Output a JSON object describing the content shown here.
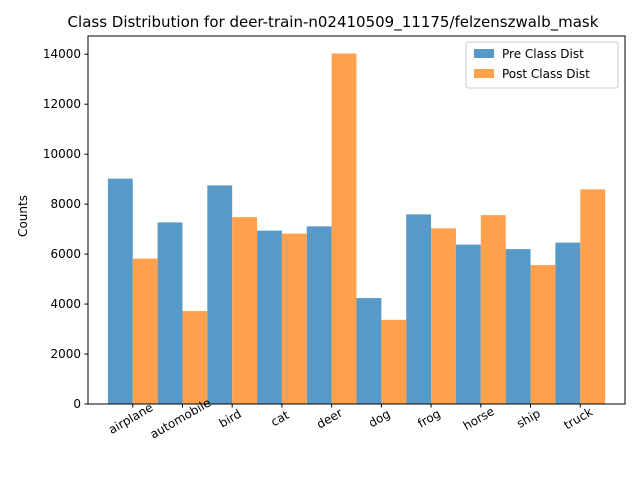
{
  "chart_data": {
    "type": "bar",
    "title": "Class Distribution for deer-train-n02410509_11175/felzenszwalb_mask",
    "xlabel": "",
    "ylabel": "Counts",
    "categories": [
      "airplane",
      "automobile",
      "bird",
      "cat",
      "deer",
      "dog",
      "frog",
      "horse",
      "ship",
      "truck"
    ],
    "series": [
      {
        "name": "Pre Class Dist",
        "color": "#5799c7",
        "values": [
          9020,
          7270,
          8750,
          6940,
          7110,
          4240,
          7590,
          6380,
          6200,
          6460
        ]
      },
      {
        "name": "Post Class Dist",
        "color": "#ffa04d",
        "values": [
          5820,
          3720,
          7480,
          6820,
          14030,
          3370,
          7030,
          7560,
          5560,
          8590
        ]
      }
    ],
    "ylim": [
      0,
      14730
    ],
    "yticks": [
      0,
      2000,
      4000,
      6000,
      8000,
      10000,
      12000,
      14000
    ],
    "legend_position": "top-right",
    "grid": false
  }
}
